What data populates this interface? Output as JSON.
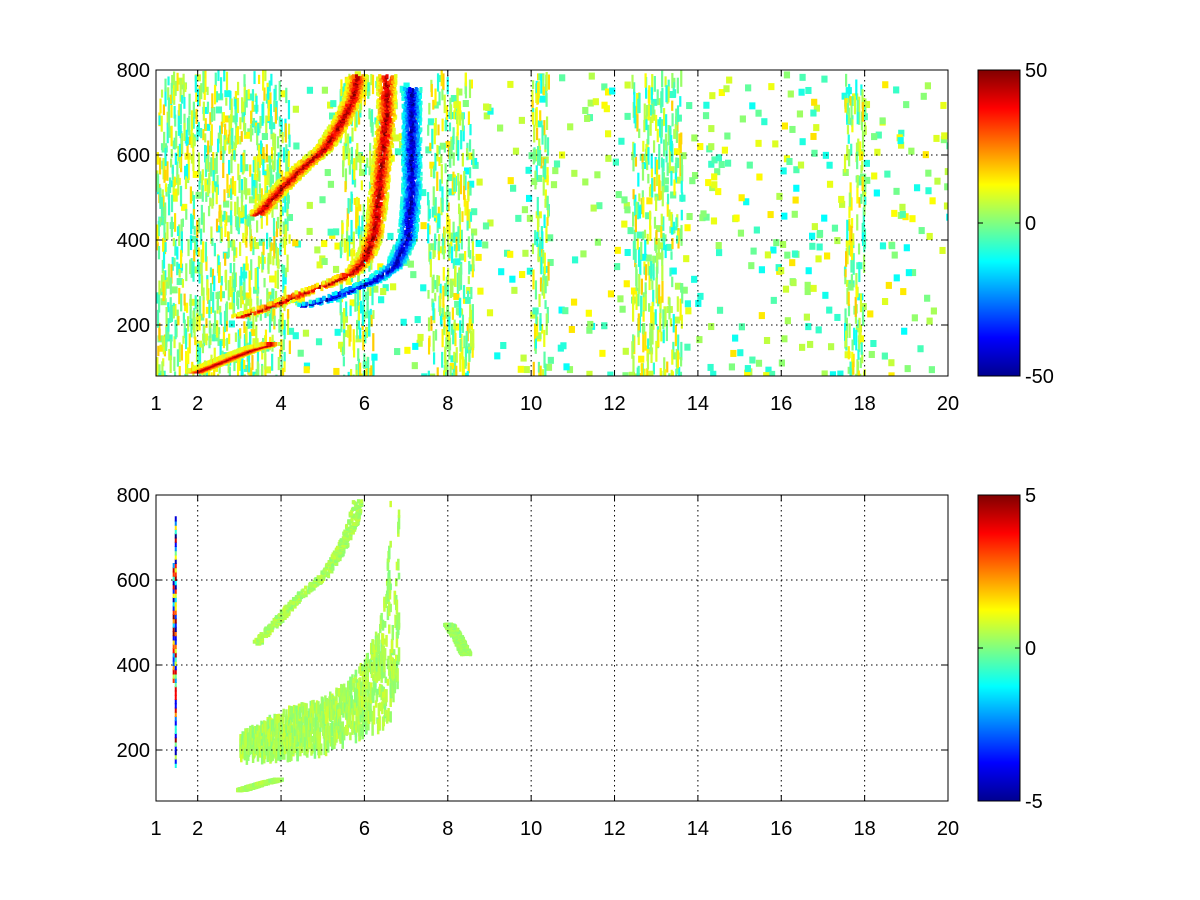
{
  "chart_data": [
    {
      "type": "heatmap",
      "title": "",
      "xlabel": "",
      "ylabel": "",
      "xlim": [
        1,
        20
      ],
      "ylim": [
        80,
        800
      ],
      "xticks": [
        1,
        2,
        4,
        6,
        8,
        10,
        12,
        14,
        16,
        18,
        20
      ],
      "yticks": [
        200,
        400,
        600,
        800
      ],
      "grid": true,
      "colormap": "jet",
      "colorbar": {
        "min": -50,
        "max": 50,
        "ticks": [
          50,
          0,
          -50
        ]
      },
      "features": [
        {
          "name": "",
          "kind": "ridge",
          "sign": "positive",
          "points": [
            [
              3.0,
              225
            ],
            [
              3.8,
              252
            ],
            [
              4.5,
              280
            ],
            [
              5.2,
              305
            ],
            [
              5.7,
              330
            ],
            [
              6.0,
              365
            ],
            [
              6.2,
              420
            ],
            [
              6.3,
              500
            ],
            [
              6.4,
              600
            ],
            [
              6.5,
              700
            ],
            [
              6.5,
              790
            ]
          ]
        },
        {
          "name": "",
          "kind": "ridge",
          "sign": "negative",
          "points": [
            [
              4.5,
              250
            ],
            [
              5.0,
              262
            ],
            [
              5.6,
              285
            ],
            [
              6.2,
              310
            ],
            [
              6.7,
              345
            ],
            [
              7.0,
              410
            ],
            [
              7.1,
              520
            ],
            [
              7.1,
              650
            ],
            [
              7.1,
              760
            ]
          ]
        },
        {
          "name": "",
          "kind": "ridge",
          "sign": "positive",
          "points": [
            [
              3.4,
              465
            ],
            [
              3.9,
              520
            ],
            [
              4.4,
              570
            ],
            [
              5.0,
              620
            ],
            [
              5.4,
              680
            ],
            [
              5.7,
              740
            ],
            [
              5.8,
              790
            ]
          ]
        },
        {
          "name": "",
          "kind": "ridge",
          "sign": "positive",
          "points": [
            [
              1.9,
              95
            ],
            [
              2.4,
              115
            ],
            [
              2.9,
              135
            ],
            [
              3.3,
              150
            ],
            [
              3.7,
              160
            ]
          ]
        }
      ],
      "noise_bands_x": [
        [
          1,
          3.2
        ],
        [
          3.2,
          4.2
        ],
        [
          5.4,
          6.2
        ],
        [
          7.5,
          8.6
        ],
        [
          10,
          10.4
        ],
        [
          12.4,
          13.6
        ],
        [
          17.5,
          18
        ]
      ]
    },
    {
      "type": "heatmap",
      "title": "",
      "xlabel": "",
      "ylabel": "",
      "xlim": [
        1,
        20
      ],
      "ylim": [
        80,
        800
      ],
      "xticks": [
        1,
        2,
        4,
        6,
        8,
        10,
        12,
        14,
        16,
        18,
        20
      ],
      "yticks": [
        200,
        400,
        600,
        800
      ],
      "grid": true,
      "colormap": "jet",
      "colorbar": {
        "min": -5,
        "max": 5,
        "ticks": [
          5,
          0,
          -5
        ]
      },
      "features": [
        {
          "name": "",
          "kind": "band",
          "value": 0.4,
          "lower": [
            [
              3.0,
              200
            ],
            [
              4.0,
              195
            ],
            [
              5.0,
              215
            ],
            [
              6.0,
              255
            ],
            [
              6.7,
              290
            ],
            [
              7.0,
              330
            ],
            [
              7.1,
              420
            ]
          ],
          "upper": [
            [
              3.0,
              245
            ],
            [
              4.0,
              300
            ],
            [
              5.0,
              330
            ],
            [
              5.6,
              370
            ],
            [
              6.0,
              420
            ],
            [
              6.3,
              500
            ],
            [
              6.5,
              620
            ],
            [
              6.6,
              790
            ]
          ]
        },
        {
          "name": "",
          "kind": "band",
          "value": 0.4,
          "lower": [
            [
              6.6,
              330
            ],
            [
              7.1,
              420
            ],
            [
              7.1,
              790
            ]
          ],
          "upper": [
            [
              6.6,
              400
            ],
            [
              6.7,
              600
            ],
            [
              6.8,
              790
            ]
          ]
        },
        {
          "name": "",
          "kind": "ridge",
          "value": 0.4,
          "points": [
            [
              3.4,
              455
            ],
            [
              3.9,
              510
            ],
            [
              4.4,
              565
            ],
            [
              5.0,
              615
            ],
            [
              5.4,
              675
            ],
            [
              5.7,
              740
            ],
            [
              5.8,
              790
            ]
          ]
        },
        {
          "name": "",
          "kind": "ridge",
          "value": 0.4,
          "points": [
            [
              3.0,
              110
            ],
            [
              3.5,
              125
            ],
            [
              3.9,
              135
            ]
          ]
        },
        {
          "name": "",
          "kind": "ridge",
          "value": 0.3,
          "points": [
            [
              8.0,
              500
            ],
            [
              8.2,
              470
            ],
            [
              8.4,
              430
            ]
          ]
        }
      ],
      "lines": [
        {
          "x": 1.4,
          "y": [
            360,
            640
          ]
        },
        {
          "x": 1.45,
          "y": [
            160,
            750
          ]
        }
      ]
    }
  ]
}
